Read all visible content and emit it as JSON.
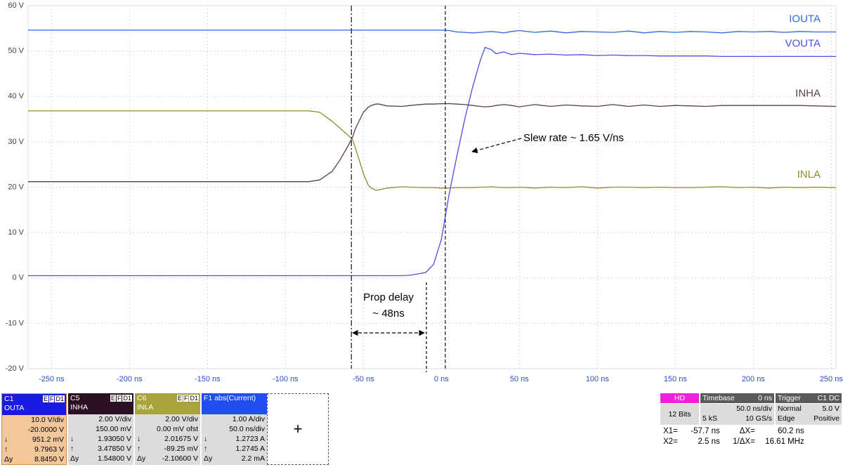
{
  "chart_data": {
    "type": "line",
    "x": [
      -265,
      -100,
      -85,
      -78,
      -70,
      -65,
      -60,
      -57,
      -55,
      -50,
      -47,
      -45,
      -42,
      -40,
      -35,
      -25,
      -20,
      -10,
      -5,
      0,
      5,
      10,
      15,
      20,
      25,
      28,
      32,
      35,
      40,
      45,
      50,
      60,
      70,
      80,
      90,
      100,
      110,
      120,
      130,
      140,
      150,
      160,
      170,
      180,
      190,
      200,
      210,
      220,
      230,
      240,
      253
    ],
    "xlim": [
      -265,
      253
    ],
    "ylim": [
      -20,
      60
    ],
    "grid": true,
    "xticks": [
      {
        "value": -250,
        "label": "-250 ns"
      },
      {
        "value": -200,
        "label": "-200 ns"
      },
      {
        "value": -150,
        "label": "-150 ns"
      },
      {
        "value": -100,
        "label": "-100 ns"
      },
      {
        "value": -50,
        "label": "-50 ns"
      },
      {
        "value": 0,
        "label": "0 ns"
      },
      {
        "value": 50,
        "label": "50 ns"
      },
      {
        "value": 100,
        "label": "100 ns"
      },
      {
        "value": 150,
        "label": "150 ns"
      },
      {
        "value": 200,
        "label": "200 ns"
      },
      {
        "value": 250,
        "label": "250 ns"
      }
    ],
    "yticks": [
      {
        "value": -20,
        "label": "-20 V"
      },
      {
        "value": -10,
        "label": "-10 V"
      },
      {
        "value": 0,
        "label": "0 V"
      },
      {
        "value": 10,
        "label": "10 V"
      },
      {
        "value": 20,
        "label": "20 V"
      },
      {
        "value": 30,
        "label": "30 V"
      },
      {
        "value": 40,
        "label": "40 V"
      },
      {
        "value": 50,
        "label": "50 V"
      },
      {
        "value": 60,
        "label": "60 V"
      }
    ],
    "series": [
      {
        "name": "IOUTA",
        "color": "#2f6ad8",
        "values": [
          54.6,
          54.6,
          54.6,
          54.6,
          54.6,
          54.6,
          54.6,
          54.6,
          54.6,
          54.6,
          54.6,
          54.6,
          54.6,
          54.6,
          54.6,
          54.6,
          54.6,
          54.6,
          54.6,
          54.6,
          54.5,
          54.2,
          54.1,
          54.0,
          54.1,
          54.2,
          54.3,
          54.2,
          54.0,
          54.3,
          54.5,
          54.1,
          54.4,
          54.0,
          54.3,
          54.2,
          54.1,
          54.4,
          54.0,
          54.3,
          54.1,
          54.3,
          54.2,
          54.0,
          54.3,
          54.2,
          54.3,
          54.1,
          54.3,
          54.2,
          54.2
        ]
      },
      {
        "name": "VOUTA",
        "color": "#4f4fe8",
        "values": [
          0.5,
          0.5,
          0.5,
          0.5,
          0.5,
          0.5,
          0.5,
          0.5,
          0.5,
          0.5,
          0.5,
          0.5,
          0.5,
          0.5,
          0.5,
          0.5,
          0.6,
          1.2,
          3,
          8.5,
          18.5,
          27,
          35,
          42,
          48,
          50.8,
          50.3,
          49.4,
          49.8,
          49.2,
          49.5,
          49.2,
          49.3,
          49.1,
          49.2,
          49,
          49.1,
          49,
          49,
          48.9,
          48.9,
          48.9,
          48.9,
          48.8,
          48.8,
          48.8,
          48.8,
          48.8,
          48.8,
          48.8,
          48.8
        ]
      },
      {
        "name": "INHA",
        "color": "#5c3a52",
        "values": [
          21.2,
          21.2,
          21.2,
          21.6,
          23.5,
          26,
          29,
          31,
          33,
          36.5,
          37.6,
          38,
          38.3,
          38.3,
          37.9,
          37.8,
          38,
          38.3,
          38.3,
          38.4,
          38.4,
          38.3,
          38.2,
          38,
          37.8,
          37.7,
          37.8,
          38,
          38.2,
          38,
          37.7,
          38.2,
          37.8,
          38.1,
          37.9,
          37.8,
          38.2,
          37.8,
          38.1,
          37.8,
          38,
          37.9,
          37.8,
          38,
          38,
          38,
          38,
          38,
          38,
          37.9,
          37.8
        ]
      },
      {
        "name": "INLA",
        "color": "#8c8c2c",
        "values": [
          36.8,
          36.8,
          36.8,
          36.5,
          34.5,
          33,
          31.5,
          30.5,
          28.5,
          23,
          20.5,
          19.8,
          19.3,
          19.4,
          19.8,
          20.1,
          20,
          19.9,
          19.9,
          19.8,
          19.8,
          19.9,
          19.9,
          19.9,
          20,
          20,
          20.1,
          20,
          19.9,
          19.9,
          20,
          19.8,
          20,
          19.9,
          20.1,
          19.8,
          20,
          20,
          19.9,
          20,
          19.9,
          19.9,
          20,
          20.1,
          19.9,
          20,
          19.8,
          20,
          19.9,
          20,
          19.9
        ]
      }
    ],
    "cursors": [
      {
        "name": "X1=",
        "value": -57.7,
        "label": "-57.7 ns"
      },
      {
        "name": "X2=",
        "value": 2.5,
        "label": "2.5 ns"
      }
    ],
    "annotations": [
      "Slew rate ~ 1.65 V/ns",
      "Prop delay",
      "~ 48ns"
    ]
  },
  "panel": {
    "channels": [
      {
        "id": "C1",
        "name": "OUTA",
        "badges": [
          "E",
          "F",
          "D1"
        ],
        "rows": [
          {
            "value": "10.0 V/div"
          },
          {
            "value": "-20.0000 V"
          },
          {
            "symbol": "↓",
            "value": "951.2 mV"
          },
          {
            "symbol": "↑",
            "value": "9.7963 V"
          },
          {
            "symbol": "Δy",
            "value": "8.8450 V"
          }
        ]
      },
      {
        "id": "C5",
        "name": "INHA",
        "badges": [
          "E",
          "F",
          "D1"
        ],
        "rows": [
          {
            "value": "2.00 V/div"
          },
          {
            "value": "150.00 mV"
          },
          {
            "symbol": "↓",
            "value": "1.93050 V"
          },
          {
            "symbol": "↑",
            "value": "3.47850 V"
          },
          {
            "symbol": "Δy",
            "value": "1.54800 V"
          }
        ]
      },
      {
        "id": "C6",
        "name": "INLA",
        "badges": [
          "E",
          "F",
          "D1"
        ],
        "rows": [
          {
            "value": "2.00 V/div"
          },
          {
            "value": "0.00 mV ofst"
          },
          {
            "symbol": "↓",
            "value": "2.01675 V"
          },
          {
            "symbol": "↑",
            "value": "-89.25 mV"
          },
          {
            "symbol": "Δy",
            "value": "-2.10600 V"
          }
        ]
      },
      {
        "id": "F1",
        "name": "abs(Current)",
        "rows": [
          {
            "value": "1.00 A/div"
          },
          {
            "value": "50.0 ns/div"
          },
          {
            "symbol": "↓",
            "value": "1.2723 A"
          },
          {
            "symbol": "↑",
            "value": "1.2745 A"
          },
          {
            "symbol": "Δy",
            "value": "2.2 mA"
          }
        ]
      }
    ],
    "add_button": "+",
    "hd": {
      "label": "HD",
      "bits": "12 Bits"
    },
    "timebase": {
      "title": "Timebase",
      "delay": "0 ns",
      "scale": "50.0 ns/div",
      "samples": "5 kS",
      "rate": "10 GS/s"
    },
    "trigger": {
      "title": "Trigger",
      "source": "C1 DC",
      "mode": "Normal",
      "level": "5.0 V",
      "type": "Edge",
      "slope": "Positive"
    },
    "cursor_readout": [
      {
        "label": "ΔX=",
        "value": "60.2 ns"
      },
      {
        "label": "1/ΔX=",
        "value": "16.61 MHz"
      }
    ]
  }
}
